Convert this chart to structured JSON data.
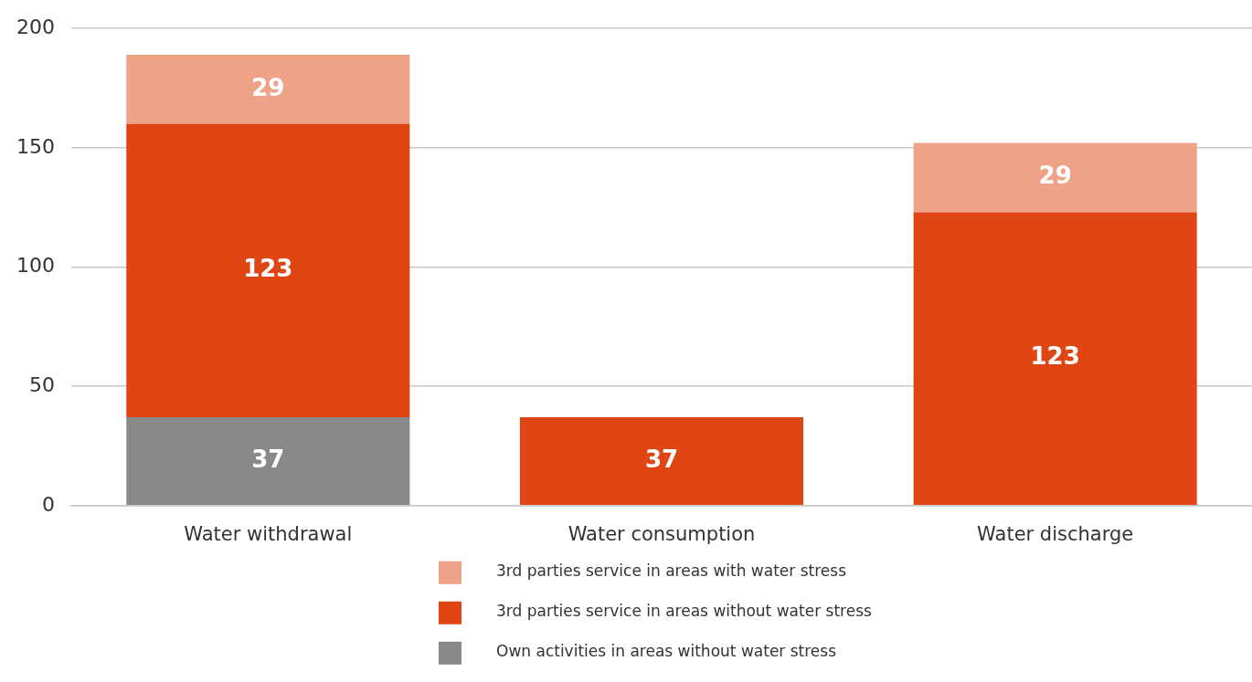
{
  "chart_data": {
    "type": "bar",
    "stacked": true,
    "categories": [
      "Water withdrawal",
      "Water consumption",
      "Water discharge"
    ],
    "series": [
      {
        "name": "Own activities in areas without water stress",
        "color": "#898989",
        "values": [
          37,
          null,
          null
        ]
      },
      {
        "name": "3rd parties service in areas without water stress",
        "color": "#e04613",
        "values": [
          123,
          37,
          123
        ]
      },
      {
        "name": "3rd parties service in areas with water stress",
        "color": "#eea287",
        "values": [
          29,
          null,
          29
        ]
      }
    ],
    "ylim": [
      0,
      200
    ],
    "yticks": [
      0,
      50,
      100,
      150,
      200
    ],
    "grid": "y",
    "legend": "bottom",
    "data_labels": true
  }
}
